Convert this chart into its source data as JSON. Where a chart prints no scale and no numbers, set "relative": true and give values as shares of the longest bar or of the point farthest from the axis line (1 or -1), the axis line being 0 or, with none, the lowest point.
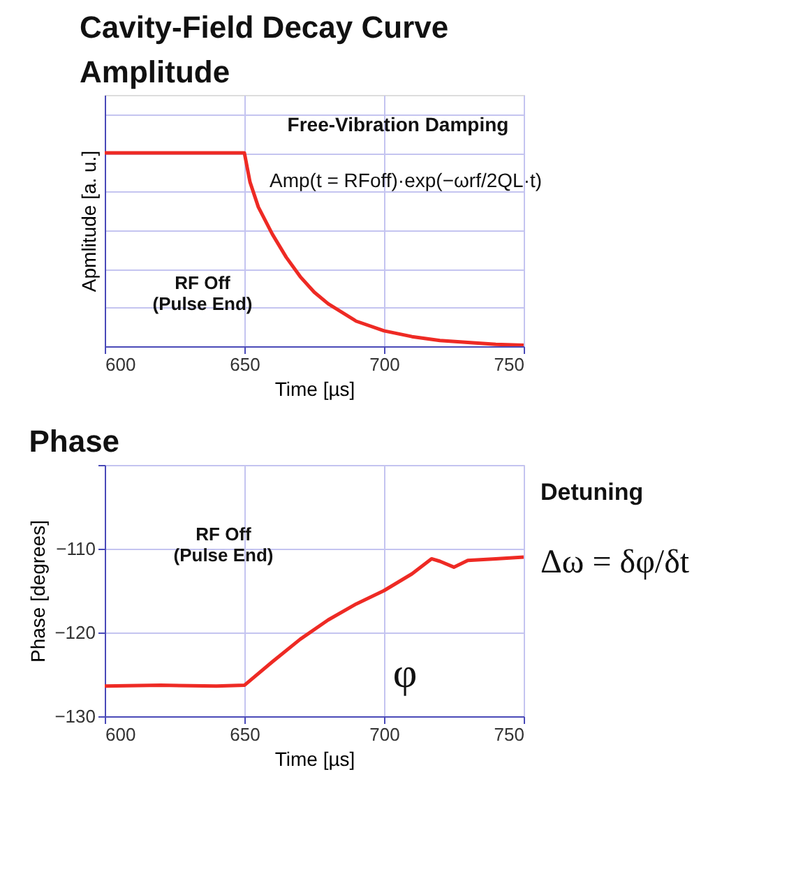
{
  "chart_data": [
    {
      "type": "line",
      "title": "Cavity-Field Decay Curve",
      "subtitle": "Amplitude",
      "xlabel": "Time [µs]",
      "ylabel": "Apmlitude [a. u.]",
      "relative": true,
      "x": [
        600,
        650,
        652,
        655,
        660,
        665,
        670,
        675,
        680,
        690,
        700,
        710,
        720,
        730,
        740,
        750
      ],
      "series": [
        {
          "color": "#ee2a24",
          "values": [
            1,
            1,
            0.85,
            0.72,
            0.58,
            0.46,
            0.36,
            0.28,
            0.22,
            0.13,
            0.08,
            0.05,
            0.03,
            0.02,
            0.01,
            0.005
          ]
        }
      ],
      "xlim": [
        600,
        750
      ],
      "xticks": [
        600,
        650,
        700,
        750
      ],
      "grid": true,
      "annotations": [
        "Free-Vibration Damping",
        "Amp(t = RFoff)·exp(−ωrf/2QL·t)",
        "RF Off\n(Pulse End)"
      ]
    },
    {
      "type": "line",
      "title": "Phase",
      "xlabel": "Time [µs]",
      "ylabel": "Phase [degrees]",
      "x": [
        600,
        620,
        640,
        650,
        660,
        670,
        680,
        690,
        700,
        710,
        717,
        720,
        725,
        730,
        740,
        750
      ],
      "series": [
        {
          "color": "#ee2a24",
          "values": [
            -126.4,
            -126.3,
            -126.4,
            -126.3,
            -123.5,
            -120.8,
            -118.5,
            -116.6,
            -115.0,
            -113.0,
            -111.2,
            -111.5,
            -112.2,
            -111.4,
            -111.2,
            -111.0
          ]
        }
      ],
      "xlim": [
        600,
        750
      ],
      "xticks": [
        600,
        650,
        700,
        750
      ],
      "ylim": [
        -130,
        -100
      ],
      "yticks": [
        -130,
        -120,
        -110,
        {
          "value": -100,
          "label": null
        }
      ],
      "grid": true,
      "annotations": [
        "RF Off\n(Pulse End)",
        "φ",
        "Detuning",
        "Δω = δφ/δt"
      ]
    }
  ]
}
